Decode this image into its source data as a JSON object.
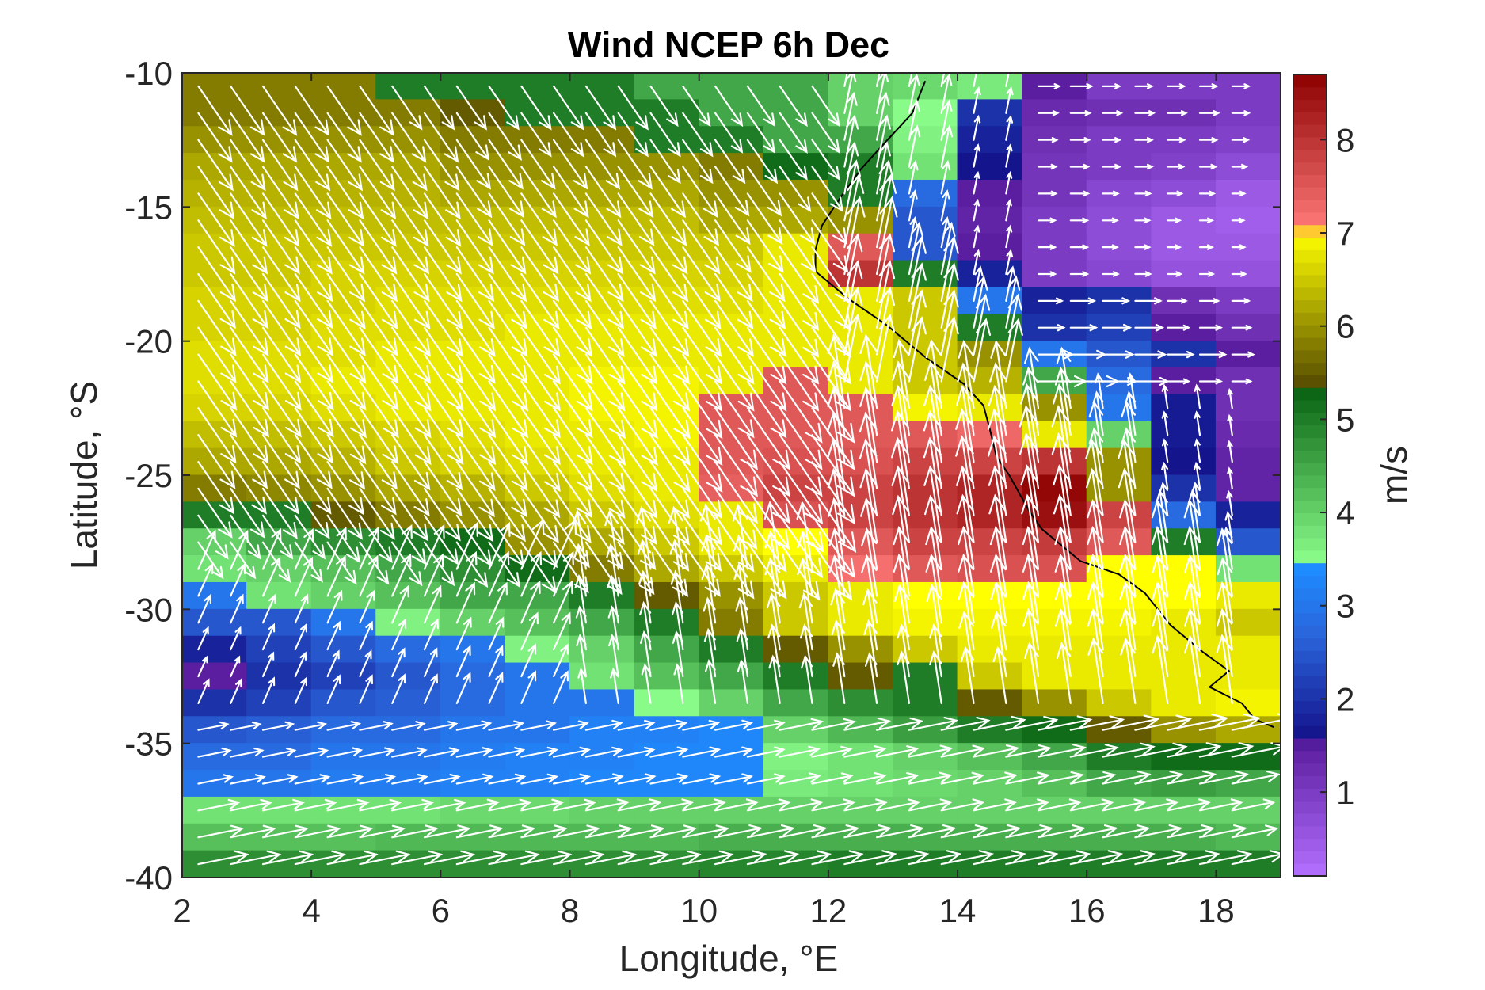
{
  "chart_data": {
    "type": "heatmap",
    "title": "Wind NCEP 6h Dec",
    "xlabel": "Longitude, °E",
    "ylabel": "Latitude, °S",
    "colorbar_label": "m/s",
    "xlim": [
      2,
      19
    ],
    "ylim": [
      -40,
      -10
    ],
    "x_ticks": [
      "2",
      "4",
      "6",
      "8",
      "10",
      "12",
      "14",
      "16",
      "18"
    ],
    "y_ticks": [
      "-10",
      "-15",
      "-20",
      "-25",
      "-30",
      "-35",
      "-40"
    ],
    "colorbar_ticks": [
      "1",
      "2",
      "3",
      "4",
      "5",
      "6",
      "7",
      "8"
    ],
    "colorbar_range": [
      0.1,
      8.7
    ],
    "colormap": [
      [
        0.1,
        "#b470ff"
      ],
      [
        1.5,
        "#5c1ea0"
      ],
      [
        1.6,
        "#14148c"
      ],
      [
        2.7,
        "#2a66dc"
      ],
      [
        3.4,
        "#1e8cff"
      ],
      [
        3.45,
        "#8cff8c"
      ],
      [
        5.3,
        "#0a6414"
      ],
      [
        5.4,
        "#5a5000"
      ],
      [
        7.0,
        "#ffff00"
      ],
      [
        7.05,
        "#ff7a7a"
      ],
      [
        8.7,
        "#8c0000"
      ]
    ],
    "cell_lon_step": 1,
    "cell_lat_step": 1,
    "arrow_color": "#ffffff",
    "grid": false,
    "coastline": [
      [
        13.5,
        -10.3
      ],
      [
        13.3,
        -11.5
      ],
      [
        12.8,
        -12.8
      ],
      [
        12.5,
        -13.6
      ],
      [
        12.2,
        -14.6
      ],
      [
        11.9,
        -15.7
      ],
      [
        11.8,
        -16.6
      ],
      [
        11.8,
        -17.4
      ],
      [
        12.3,
        -18.4
      ],
      [
        12.9,
        -19.4
      ],
      [
        13.5,
        -20.6
      ],
      [
        14.1,
        -21.6
      ],
      [
        14.4,
        -22.4
      ],
      [
        14.5,
        -23.3
      ],
      [
        14.6,
        -24.3
      ],
      [
        14.8,
        -25.0
      ],
      [
        15.1,
        -26.3
      ],
      [
        15.3,
        -27.0
      ],
      [
        15.9,
        -28.2
      ],
      [
        16.5,
        -28.7
      ],
      [
        16.9,
        -29.4
      ],
      [
        17.3,
        -30.6
      ],
      [
        17.8,
        -31.6
      ],
      [
        18.2,
        -32.3
      ],
      [
        17.9,
        -32.9
      ],
      [
        18.4,
        -33.5
      ],
      [
        18.6,
        -34.1
      ],
      [
        18.9,
        -34.4
      ]
    ],
    "speed_grid": [
      [
        -10.5,
        [
          5.8,
          5.8,
          5.8,
          5.0,
          5.0,
          5.0,
          5.0,
          4.5,
          4.5,
          4.5,
          4.0,
          3.9,
          3.7,
          1.5,
          1.0,
          1.0,
          1.0,
          1.0,
          1.0
        ]
      ],
      [
        -11.5,
        [
          5.8,
          5.8,
          5.8,
          5.8,
          5.5,
          5.0,
          5.0,
          5.0,
          4.5,
          4.5,
          4.0,
          3.5,
          2.0,
          1.3,
          1.2,
          1.2,
          1.0,
          1.0,
          1.0
        ]
      ],
      [
        -12.5,
        [
          6.0,
          6.0,
          6.0,
          6.0,
          5.8,
          5.8,
          5.8,
          5.0,
          5.0,
          4.5,
          4.5,
          3.6,
          1.8,
          1.2,
          1.0,
          1.0,
          0.9,
          0.8,
          0.8
        ]
      ],
      [
        -13.5,
        [
          6.2,
          6.2,
          6.2,
          6.2,
          6.0,
          6.0,
          6.0,
          6.0,
          5.8,
          5.2,
          5.0,
          3.8,
          1.6,
          1.1,
          1.0,
          0.9,
          0.7,
          0.5,
          0.5
        ]
      ],
      [
        -14.5,
        [
          6.3,
          6.3,
          6.3,
          6.3,
          6.2,
          6.2,
          6.2,
          6.2,
          6.0,
          6.0,
          5.0,
          2.8,
          1.5,
          1.1,
          0.8,
          0.7,
          0.5,
          0.4,
          0.4
        ]
      ],
      [
        -15.5,
        [
          6.4,
          6.4,
          6.4,
          6.4,
          6.4,
          6.4,
          6.4,
          6.4,
          6.2,
          6.2,
          6.0,
          2.5,
          1.4,
          1.0,
          0.7,
          0.5,
          0.4,
          0.4,
          0.4
        ]
      ],
      [
        -16.5,
        [
          6.5,
          6.5,
          6.5,
          6.5,
          6.5,
          6.5,
          6.5,
          6.5,
          6.5,
          6.8,
          7.5,
          2.5,
          1.5,
          1.0,
          0.7,
          0.5,
          0.5,
          0.5,
          0.5
        ]
      ],
      [
        -17.5,
        [
          6.5,
          6.5,
          6.6,
          6.6,
          6.6,
          6.6,
          6.6,
          6.6,
          6.6,
          6.8,
          8.0,
          5.0,
          1.8,
          1.0,
          0.8,
          0.6,
          0.6,
          0.6,
          0.8
        ]
      ],
      [
        -18.5,
        [
          6.6,
          6.6,
          6.6,
          6.7,
          6.7,
          6.7,
          6.7,
          6.7,
          6.7,
          6.8,
          6.8,
          6.5,
          3.0,
          1.8,
          2.0,
          1.2,
          1.0,
          1.0,
          1.0
        ]
      ],
      [
        -19.5,
        [
          6.6,
          6.6,
          6.7,
          6.7,
          6.7,
          6.8,
          6.8,
          6.8,
          6.8,
          6.8,
          6.8,
          6.5,
          5.0,
          2.0,
          2.2,
          1.5,
          1.2,
          1.0,
          1.0
        ]
      ],
      [
        -20.5,
        [
          6.7,
          6.7,
          6.7,
          6.8,
          6.8,
          6.8,
          6.8,
          6.8,
          6.8,
          6.8,
          6.8,
          6.5,
          6.0,
          3.0,
          2.5,
          2.0,
          1.5,
          1.2,
          1.2
        ]
      ],
      [
        -21.5,
        [
          6.7,
          6.7,
          6.8,
          6.8,
          6.8,
          6.8,
          6.9,
          6.9,
          6.8,
          7.5,
          6.8,
          6.5,
          6.3,
          4.5,
          2.8,
          1.5,
          1.2,
          1.0,
          1.2
        ]
      ],
      [
        -22.5,
        [
          6.6,
          6.6,
          6.7,
          6.8,
          6.8,
          6.8,
          6.9,
          6.9,
          7.5,
          7.5,
          7.5,
          6.9,
          6.8,
          6.0,
          3.0,
          1.7,
          1.2,
          1.0,
          1.2
        ]
      ],
      [
        -23.5,
        [
          6.4,
          6.4,
          6.5,
          6.6,
          6.7,
          6.8,
          6.8,
          6.9,
          7.5,
          7.5,
          7.5,
          7.5,
          7.3,
          6.8,
          4.0,
          1.7,
          1.3,
          1.2,
          1.2
        ]
      ],
      [
        -24.5,
        [
          6.2,
          6.2,
          6.3,
          6.5,
          6.6,
          6.7,
          6.8,
          6.8,
          7.5,
          7.6,
          7.6,
          7.8,
          7.8,
          8.0,
          6.0,
          1.6,
          1.4,
          1.3,
          1.3
        ]
      ],
      [
        -25.5,
        [
          5.8,
          5.9,
          6.0,
          6.2,
          6.3,
          6.5,
          6.7,
          6.8,
          7.4,
          7.8,
          7.8,
          8.0,
          8.2,
          8.6,
          6.0,
          2.0,
          1.4,
          1.6,
          2.2
        ]
      ],
      [
        -26.5,
        [
          5.0,
          5.0,
          5.5,
          5.8,
          6.0,
          6.2,
          6.5,
          6.7,
          6.8,
          7.6,
          7.8,
          8.0,
          8.2,
          8.5,
          7.8,
          2.8,
          1.8,
          2.5,
          2.8
        ]
      ],
      [
        -27.5,
        [
          4.0,
          4.5,
          4.8,
          5.0,
          5.2,
          6.0,
          6.2,
          6.5,
          6.8,
          7.0,
          7.5,
          7.8,
          7.8,
          7.9,
          7.5,
          5.0,
          2.5,
          3.6,
          2.8
        ]
      ],
      [
        -28.5,
        [
          3.8,
          4.0,
          4.2,
          4.5,
          4.8,
          5.2,
          5.8,
          6.2,
          6.5,
          6.8,
          7.2,
          7.5,
          7.6,
          7.6,
          7.0,
          7.0,
          3.8,
          3.8,
          2.5
        ]
      ],
      [
        -29.5,
        [
          3.0,
          3.8,
          4.0,
          4.2,
          4.5,
          4.5,
          5.0,
          5.5,
          6.0,
          6.5,
          6.8,
          7.0,
          7.0,
          7.0,
          7.0,
          7.0,
          6.8,
          5.0,
          2.5
        ]
      ],
      [
        -30.5,
        [
          2.5,
          2.5,
          3.0,
          3.6,
          4.0,
          4.2,
          4.5,
          5.0,
          5.8,
          6.5,
          6.8,
          6.9,
          6.9,
          6.9,
          6.9,
          6.8,
          6.5,
          6.0,
          3.0
        ]
      ],
      [
        -31.5,
        [
          1.8,
          2.2,
          2.5,
          2.8,
          3.0,
          3.6,
          4.0,
          4.5,
          5.0,
          5.5,
          6.0,
          6.5,
          6.8,
          6.8,
          6.8,
          6.8,
          6.8,
          6.5,
          4.5
        ]
      ],
      [
        -32.5,
        [
          1.5,
          2.0,
          2.2,
          2.5,
          2.8,
          3.0,
          3.8,
          4.2,
          4.5,
          5.0,
          5.5,
          5.0,
          6.5,
          6.8,
          6.8,
          6.8,
          6.8,
          6.8,
          5.0
        ]
      ],
      [
        -33.5,
        [
          2.0,
          2.2,
          2.5,
          2.6,
          2.8,
          3.0,
          3.0,
          3.5,
          4.0,
          4.5,
          4.8,
          5.0,
          5.5,
          6.0,
          6.5,
          6.8,
          6.9,
          6.8,
          6.5
        ]
      ],
      [
        -34.5,
        [
          2.5,
          2.6,
          2.8,
          2.8,
          3.0,
          3.0,
          3.2,
          3.2,
          3.3,
          4.0,
          4.3,
          4.6,
          5.0,
          5.2,
          5.5,
          6.0,
          6.2,
          6.0,
          5.8
        ]
      ],
      [
        -35.5,
        [
          2.8,
          2.8,
          3.0,
          3.0,
          3.1,
          3.2,
          3.2,
          3.3,
          3.3,
          3.6,
          3.8,
          4.0,
          4.2,
          4.5,
          5.0,
          5.2,
          5.2,
          5.0,
          5.0
        ]
      ],
      [
        -36.5,
        [
          3.0,
          3.0,
          3.1,
          3.1,
          3.2,
          3.2,
          3.3,
          3.3,
          3.3,
          3.7,
          3.8,
          3.9,
          4.0,
          4.2,
          4.5,
          4.6,
          4.5,
          4.5,
          4.5
        ]
      ],
      [
        -37.5,
        [
          3.8,
          3.8,
          3.8,
          3.8,
          3.9,
          3.9,
          4.0,
          4.0,
          4.0,
          4.0,
          4.0,
          4.0,
          4.0,
          4.0,
          4.0,
          4.0,
          4.0,
          3.0,
          3.0
        ]
      ],
      [
        -38.5,
        [
          4.2,
          4.2,
          4.2,
          4.3,
          4.3,
          4.3,
          4.3,
          4.3,
          4.4,
          4.4,
          4.4,
          4.4,
          4.4,
          4.4,
          4.4,
          4.4,
          4.3,
          4.2,
          4.2
        ]
      ],
      [
        -39.5,
        [
          4.8,
          4.8,
          4.8,
          4.8,
          4.8,
          4.8,
          4.8,
          4.8,
          4.9,
          4.9,
          5.0,
          5.0,
          5.0,
          5.0,
          5.0,
          5.0,
          5.0,
          5.0,
          5.0
        ]
      ],
      [
        -40.5,
        [
          5.2,
          5.2,
          5.2,
          5.2,
          5.2,
          5.2,
          5.2,
          5.2,
          5.3,
          5.8,
          5.8,
          5.8,
          5.8,
          5.8,
          5.8,
          5.8,
          5.8,
          5.8,
          5.8
        ]
      ]
    ],
    "wind_direction_regions": [
      {
        "lat_range": [
          -10,
          -28
        ],
        "lon_range": [
          2,
          12
        ],
        "u": 0.55,
        "v": -0.8
      },
      {
        "lat_range": [
          -10,
          -22
        ],
        "lon_range": [
          12,
          15
        ],
        "u": 0.2,
        "v": 1.0
      },
      {
        "lat_range": [
          -10,
          -22
        ],
        "lon_range": [
          15,
          19
        ],
        "u": 1.0,
        "v": 0.0
      },
      {
        "lat_range": [
          -22,
          -34
        ],
        "lon_range": [
          8,
          19
        ],
        "u": -0.15,
        "v": 1.0
      },
      {
        "lat_range": [
          -28,
          -34
        ],
        "lon_range": [
          2,
          8
        ],
        "u": 0.4,
        "v": 0.9
      },
      {
        "lat_range": [
          -34,
          -40
        ],
        "lon_range": [
          2,
          19
        ],
        "u": 1.0,
        "v": 0.2
      }
    ]
  }
}
